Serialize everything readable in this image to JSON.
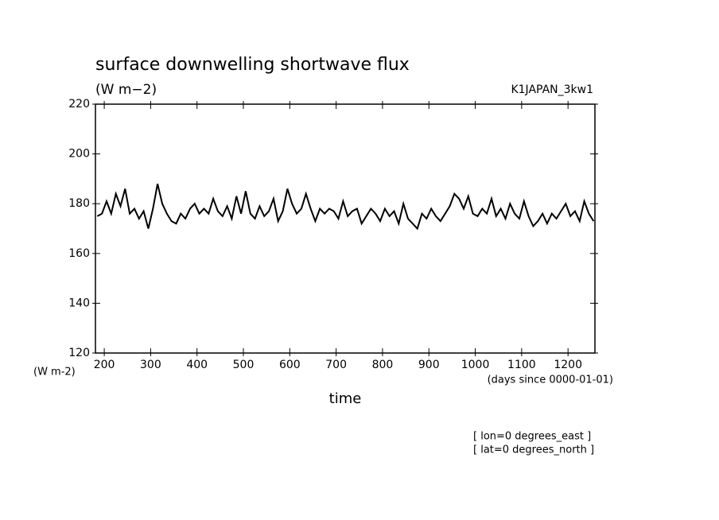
{
  "chart_data": {
    "type": "line",
    "title": "surface downwelling shortwave flux",
    "subtitle": "(W m−2)",
    "dataset": "K1JAPAN_3kw1",
    "y_label": "(W m-2)",
    "x_label": "time",
    "x_units": "(days since 0000-01-01)",
    "notes": [
      "[ lon=0 degrees_east ]",
      "[ lat=0 degrees_north ]"
    ],
    "xlim": [
      181,
      1258
    ],
    "ylim": [
      120,
      220
    ],
    "xticks": [
      200,
      300,
      400,
      500,
      600,
      700,
      800,
      900,
      1000,
      1100,
      1200
    ],
    "yticks": [
      120,
      140,
      160,
      180,
      200,
      220
    ],
    "color": "#000000",
    "x": [
      185,
      195,
      205,
      215,
      225,
      235,
      245,
      255,
      265,
      275,
      285,
      295,
      305,
      315,
      325,
      335,
      345,
      355,
      365,
      375,
      385,
      395,
      405,
      415,
      425,
      435,
      445,
      455,
      465,
      475,
      485,
      495,
      505,
      515,
      525,
      535,
      545,
      555,
      565,
      575,
      585,
      595,
      605,
      615,
      625,
      635,
      645,
      655,
      665,
      675,
      685,
      695,
      705,
      715,
      725,
      735,
      745,
      755,
      765,
      775,
      785,
      795,
      805,
      815,
      825,
      835,
      845,
      855,
      865,
      875,
      885,
      895,
      905,
      915,
      925,
      935,
      945,
      955,
      965,
      975,
      985,
      995,
      1005,
      1015,
      1025,
      1035,
      1045,
      1055,
      1065,
      1075,
      1085,
      1095,
      1105,
      1115,
      1125,
      1135,
      1145,
      1155,
      1165,
      1175,
      1185,
      1195,
      1205,
      1215,
      1225,
      1235,
      1245,
      1255
    ],
    "values": [
      175,
      176,
      181,
      176,
      184,
      179,
      186,
      176,
      178,
      174,
      177,
      170,
      178,
      188,
      180,
      176,
      173,
      172,
      176,
      174,
      178,
      180,
      176,
      178,
      176,
      182,
      177,
      175,
      179,
      174,
      183,
      176,
      185,
      176,
      174,
      179,
      175,
      177,
      182,
      173,
      177,
      186,
      180,
      176,
      178,
      184,
      178,
      173,
      178,
      176,
      178,
      177,
      174,
      181,
      175,
      177,
      178,
      172,
      175,
      178,
      176,
      173,
      178,
      175,
      177,
      172,
      180,
      174,
      172,
      170,
      176,
      174,
      178,
      175,
      173,
      176,
      179,
      184,
      182,
      178,
      183,
      176,
      175,
      178,
      176,
      182,
      175,
      178,
      174,
      180,
      176,
      174,
      181,
      175,
      171,
      173,
      176,
      172,
      176,
      174,
      177,
      180,
      175,
      177,
      173,
      181,
      176,
      173
    ]
  }
}
